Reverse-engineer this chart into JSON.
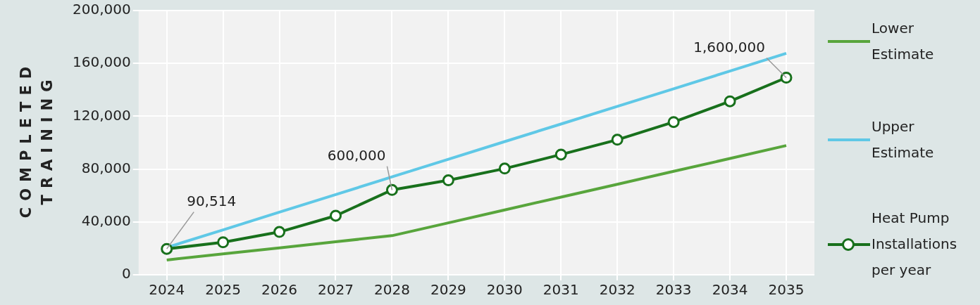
{
  "chart_data": {
    "type": "line",
    "ylabel": "COMPLETED TRAINING",
    "categories": [
      "2024",
      "2025",
      "2026",
      "2027",
      "2028",
      "2029",
      "2030",
      "2031",
      "2032",
      "2033",
      "2034",
      "2035"
    ],
    "series": [
      {
        "name": "Lower Estimate",
        "color": "#58a53c",
        "marker": "none",
        "values": [
          11200,
          15800,
          20400,
          25000,
          29600,
          39300,
          49100,
          58800,
          68500,
          78300,
          88000,
          97800
        ]
      },
      {
        "name": "Upper Estimate",
        "color": "#5fc8e6",
        "marker": "none",
        "values": [
          20700,
          34000,
          47400,
          60700,
          74100,
          87400,
          100800,
          114100,
          127500,
          140800,
          154200,
          167600
        ]
      },
      {
        "name": "Heat Pump Installations per year",
        "color": "#18701c",
        "marker": "circle",
        "values": [
          19600,
          24600,
          32400,
          44700,
          64200,
          71500,
          80400,
          91000,
          102200,
          115600,
          131300,
          149200
        ]
      }
    ],
    "ylim": [
      0,
      200000
    ],
    "yticks": [
      {
        "value": 0,
        "label": "0"
      },
      {
        "value": 40000,
        "label": "40,000"
      },
      {
        "value": 80000,
        "label": "80,000"
      },
      {
        "value": 120000,
        "label": "120,000"
      },
      {
        "value": 160000,
        "label": "160,000"
      },
      {
        "value": 200000,
        "label": "200,000"
      }
    ],
    "grid": true,
    "legend": "right",
    "line_style": "solid",
    "annotations": [
      {
        "text": "90,514",
        "x": "2024",
        "y": 19600
      },
      {
        "text": "600,000",
        "x": "2028",
        "y": 64200
      },
      {
        "text": "1,600,000",
        "x": "2035",
        "y": 149200
      }
    ]
  }
}
